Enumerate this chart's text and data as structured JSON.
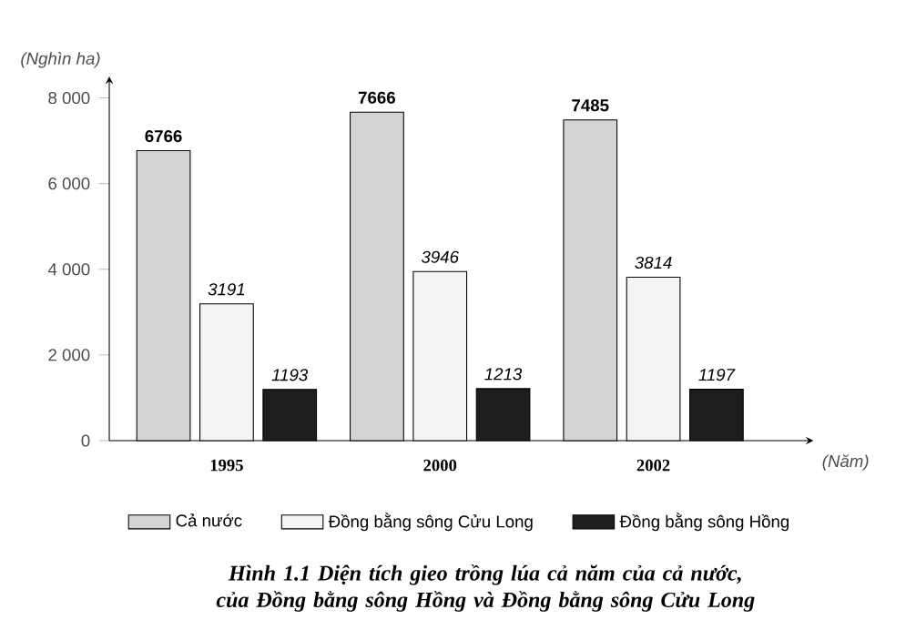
{
  "chart_data": {
    "type": "bar",
    "title": "Hình 1.1 Diện tích gieo trồng lúa cả năm của cả nước, của Đồng bằng sông Hồng và Đồng bằng sông Cửu Long",
    "xlabel": "(Năm)",
    "ylabel": "(Nghìn ha)",
    "categories": [
      "1995",
      "2000",
      "2002"
    ],
    "series": [
      {
        "name": "Cả nước",
        "color": "#d4d4d4",
        "values": [
          6766,
          7666,
          7485
        ]
      },
      {
        "name": "Đồng bằng sông Cửu Long",
        "color": "#f4f4f4",
        "values": [
          3191,
          3946,
          3814
        ]
      },
      {
        "name": "Đồng bằng sông Hồng",
        "color": "#1e1e1e",
        "values": [
          1193,
          1213,
          1197
        ]
      }
    ],
    "ylim": [
      0,
      8500
    ],
    "yticks": [
      0,
      {
        "value": 2000,
        "label": "2 000"
      },
      {
        "value": 4000,
        "label": "4 000"
      },
      {
        "value": 6000,
        "label": "6 000"
      },
      {
        "value": 8000,
        "label": "8 000"
      }
    ],
    "data_labels": true,
    "legend": "bottom",
    "grid": false
  }
}
